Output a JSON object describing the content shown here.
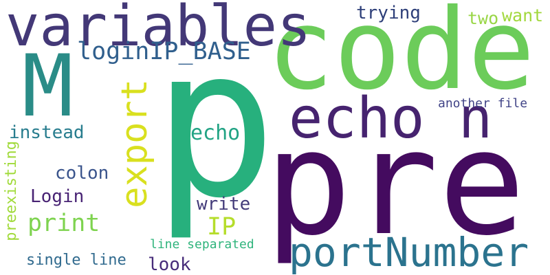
{
  "words": [
    {
      "text": "pre",
      "color": "#440b5f"
    },
    {
      "text": "p",
      "color": "#27b07d"
    },
    {
      "text": "code",
      "color": "#6ccc5a"
    },
    {
      "text": "variables",
      "color": "#433877"
    },
    {
      "text": "M",
      "color": "#2a8c87"
    },
    {
      "text": "echo n",
      "color": "#46236f"
    },
    {
      "text": "export",
      "color": "#d9e01f"
    },
    {
      "text": "portNumber",
      "color": "#2b738e"
    },
    {
      "text": "loginIP_BASE",
      "color": "#305f8d"
    },
    {
      "text": "echo",
      "color": "#21a384"
    },
    {
      "text": "trying",
      "color": "#2e3f79"
    },
    {
      "text": "two",
      "color": "#99d646"
    },
    {
      "text": "want",
      "color": "#a2d83d"
    },
    {
      "text": "another file",
      "color": "#414487"
    },
    {
      "text": "instead",
      "color": "#287d8e"
    },
    {
      "text": "colon",
      "color": "#3a548c"
    },
    {
      "text": "Login",
      "color": "#482374"
    },
    {
      "text": "print",
      "color": "#7ed34f"
    },
    {
      "text": "write",
      "color": "#433b7a"
    },
    {
      "text": "IP",
      "color": "#b5dd2b"
    },
    {
      "text": "line separated",
      "color": "#2fb47c"
    },
    {
      "text": "single line",
      "color": "#306a8e"
    },
    {
      "text": "look",
      "color": "#472c7a"
    },
    {
      "text": "preexisting",
      "color": "#a0da39"
    }
  ]
}
